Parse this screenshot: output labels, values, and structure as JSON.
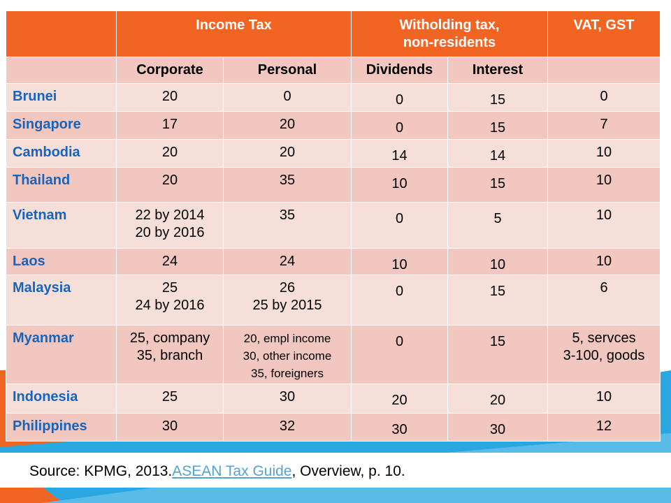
{
  "colors": {
    "header_orange": "#f26422",
    "row_light": "#f7dfd9",
    "row_dark": "#f2c7bf",
    "country_blue": "#1565c0",
    "bg_blue": "#2aa6e0",
    "link": "#56a3c9"
  },
  "header": {
    "income_tax": "Income Tax",
    "withholding_line1": "Witholding tax,",
    "withholding_line2": "non-residents",
    "vat": "VAT, GST"
  },
  "subheader": {
    "corporate": "Corporate",
    "personal": "Personal",
    "dividends": "Dividends",
    "interest": "Interest"
  },
  "rows": [
    {
      "country": "Brunei",
      "corporate": [
        "20"
      ],
      "personal": [
        "0"
      ],
      "dividends": "0",
      "interest": "15",
      "vat": [
        "0"
      ]
    },
    {
      "country": "Singapore",
      "corporate": [
        "17"
      ],
      "personal": [
        "20"
      ],
      "dividends": "0",
      "interest": "15",
      "vat": [
        "7"
      ]
    },
    {
      "country": "Cambodia",
      "corporate": [
        "20"
      ],
      "personal": [
        "20"
      ],
      "dividends": "14",
      "interest": "14",
      "vat": [
        "10"
      ]
    },
    {
      "country": "Thailand",
      "corporate": [
        "20"
      ],
      "personal": [
        "35"
      ],
      "dividends": "10",
      "interest": "15",
      "vat": [
        "10"
      ]
    },
    {
      "country": "Vietnam",
      "corporate": [
        "22 by 2014",
        "20 by 2016"
      ],
      "personal": [
        "35"
      ],
      "dividends": "0",
      "interest": "5",
      "vat": [
        "10"
      ]
    },
    {
      "country": "Laos",
      "corporate": [
        "24"
      ],
      "personal": [
        "24"
      ],
      "dividends": "10",
      "interest": "10",
      "vat": [
        "10"
      ]
    },
    {
      "country": "Malaysia",
      "corporate": [
        "25",
        "24 by 2016"
      ],
      "personal": [
        "26",
        "25 by 2015"
      ],
      "dividends": "0",
      "interest": "15",
      "vat": [
        "6"
      ]
    },
    {
      "country": "Myanmar",
      "corporate": [
        "25, company",
        "35, branch"
      ],
      "personal": [
        "20, empl income",
        "30, other income",
        "35, foreigners"
      ],
      "dividends": "0",
      "interest": "15",
      "vat": [
        "5, servces",
        "3-100, goods"
      ]
    },
    {
      "country": "Indonesia",
      "corporate": [
        "25"
      ],
      "personal": [
        "30"
      ],
      "dividends": "20",
      "interest": "20",
      "vat": [
        "10"
      ]
    },
    {
      "country": "Philippines",
      "corporate": [
        "30"
      ],
      "personal": [
        "32"
      ],
      "dividends": "30",
      "interest": "30",
      "vat": [
        "12"
      ]
    }
  ],
  "source": {
    "prefix": "Source: KPMG, 2013.",
    "link_text": "ASEAN Tax Guide",
    "suffix": ", Overview, p. 10."
  }
}
